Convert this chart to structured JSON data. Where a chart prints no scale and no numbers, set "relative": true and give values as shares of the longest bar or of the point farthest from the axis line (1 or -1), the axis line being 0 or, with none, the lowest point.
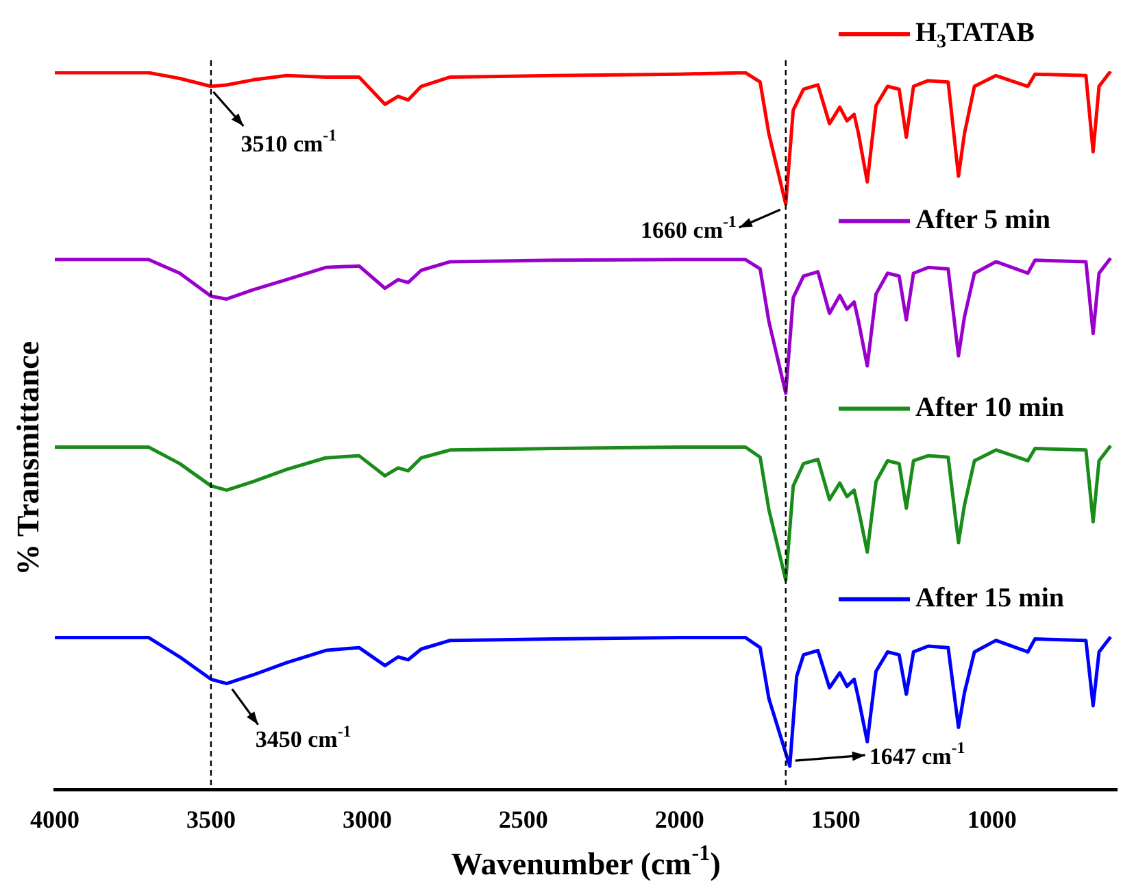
{
  "chart_data": {
    "type": "line",
    "xlabel": "Wavenumber (cm$^{-1}$)",
    "ylabel": "% Transmittance",
    "relative": true,
    "legend": "right",
    "xlim": [
      4000,
      600
    ],
    "xticks": [
      4000,
      3500,
      3000,
      2500,
      2000,
      1500,
      1000
    ],
    "x": [
      4000,
      3700,
      3600,
      3500,
      3450,
      3365,
      3258,
      3133,
      3026,
      2943,
      2901,
      2869,
      2827,
      2734,
      2400,
      2000,
      1789,
      1742,
      1714,
      1660,
      1636,
      1603,
      1557,
      1520,
      1487,
      1464,
      1441,
      1427,
      1399,
      1371,
      1334,
      1297,
      1274,
      1251,
      1204,
      1140,
      1107,
      1088,
      1056,
      987,
      885,
      862,
      699,
      676,
      657,
      620
    ],
    "series": [
      {
        "name": "H$_{3}$TATAB",
        "color": "#ff0000",
        "values": [
          0.998,
          0.998,
          0.99,
          0.979,
          0.981,
          0.988,
          0.994,
          0.992,
          0.992,
          0.954,
          0.965,
          0.96,
          0.979,
          0.992,
          0.994,
          0.996,
          0.998,
          0.985,
          0.913,
          0.815,
          0.946,
          0.975,
          0.981,
          0.927,
          0.95,
          0.931,
          0.94,
          0.913,
          0.846,
          0.952,
          0.979,
          0.975,
          0.908,
          0.979,
          0.987,
          0.985,
          0.854,
          0.913,
          0.979,
          0.994,
          0.979,
          0.996,
          0.994,
          0.888,
          0.979,
          1.0
        ]
      },
      {
        "name": "After 5 min",
        "color": "#9900cc",
        "values": [
          0.738,
          0.738,
          0.719,
          0.687,
          0.683,
          0.696,
          0.71,
          0.727,
          0.729,
          0.698,
          0.71,
          0.706,
          0.723,
          0.735,
          0.737,
          0.738,
          0.738,
          0.725,
          0.652,
          0.552,
          0.685,
          0.715,
          0.721,
          0.663,
          0.688,
          0.669,
          0.679,
          0.652,
          0.59,
          0.69,
          0.719,
          0.715,
          0.654,
          0.719,
          0.727,
          0.725,
          0.604,
          0.658,
          0.719,
          0.735,
          0.719,
          0.737,
          0.735,
          0.635,
          0.719,
          0.74
        ]
      },
      {
        "name": "After 10 min",
        "color": "#1a8c1a",
        "values": [
          0.477,
          0.477,
          0.454,
          0.423,
          0.417,
          0.429,
          0.446,
          0.462,
          0.465,
          0.437,
          0.448,
          0.444,
          0.462,
          0.473,
          0.475,
          0.477,
          0.477,
          0.463,
          0.39,
          0.292,
          0.423,
          0.454,
          0.46,
          0.404,
          0.427,
          0.408,
          0.417,
          0.39,
          0.331,
          0.429,
          0.458,
          0.454,
          0.392,
          0.458,
          0.465,
          0.463,
          0.344,
          0.396,
          0.458,
          0.473,
          0.458,
          0.475,
          0.473,
          0.373,
          0.458,
          0.479
        ]
      },
      {
        "name": "After 15 min",
        "color": "#0000ff",
        "x": [
          4000,
          3700,
          3600,
          3500,
          3450,
          3365,
          3258,
          3133,
          3026,
          2943,
          2901,
          2869,
          2827,
          2734,
          2400,
          2000,
          1789,
          1742,
          1714,
          1647,
          1625,
          1603,
          1557,
          1520,
          1487,
          1464,
          1441,
          1427,
          1399,
          1371,
          1334,
          1297,
          1274,
          1251,
          1204,
          1140,
          1107,
          1088,
          1056,
          987,
          885,
          862,
          699,
          676,
          657,
          620
        ],
        "values": [
          0.212,
          0.212,
          0.185,
          0.154,
          0.148,
          0.16,
          0.177,
          0.194,
          0.198,
          0.173,
          0.185,
          0.181,
          0.196,
          0.208,
          0.21,
          0.212,
          0.212,
          0.198,
          0.127,
          0.033,
          0.158,
          0.188,
          0.194,
          0.142,
          0.163,
          0.144,
          0.154,
          0.127,
          0.067,
          0.165,
          0.192,
          0.188,
          0.133,
          0.192,
          0.2,
          0.198,
          0.087,
          0.135,
          0.192,
          0.208,
          0.192,
          0.21,
          0.208,
          0.117,
          0.192,
          0.213
        ]
      }
    ],
    "ref_lines": [
      {
        "axis": "x",
        "value": 3500,
        "color": "#000000",
        "line_style": "dashed"
      },
      {
        "axis": "x",
        "value": 1660,
        "color": "#000000",
        "line_style": "dashed"
      }
    ],
    "annotations": [
      {
        "text": "3510 cm$^{-1}$",
        "x": 3510,
        "y": 0.979
      },
      {
        "text": "1660 cm$^{-1}$",
        "x": 1660,
        "y": 0.815
      },
      {
        "text": "3450 cm$^{-1}$",
        "x": 3450,
        "y": 0.148
      },
      {
        "text": "1647 cm$^{-1}$",
        "x": 1647,
        "y": 0.033
      }
    ]
  }
}
